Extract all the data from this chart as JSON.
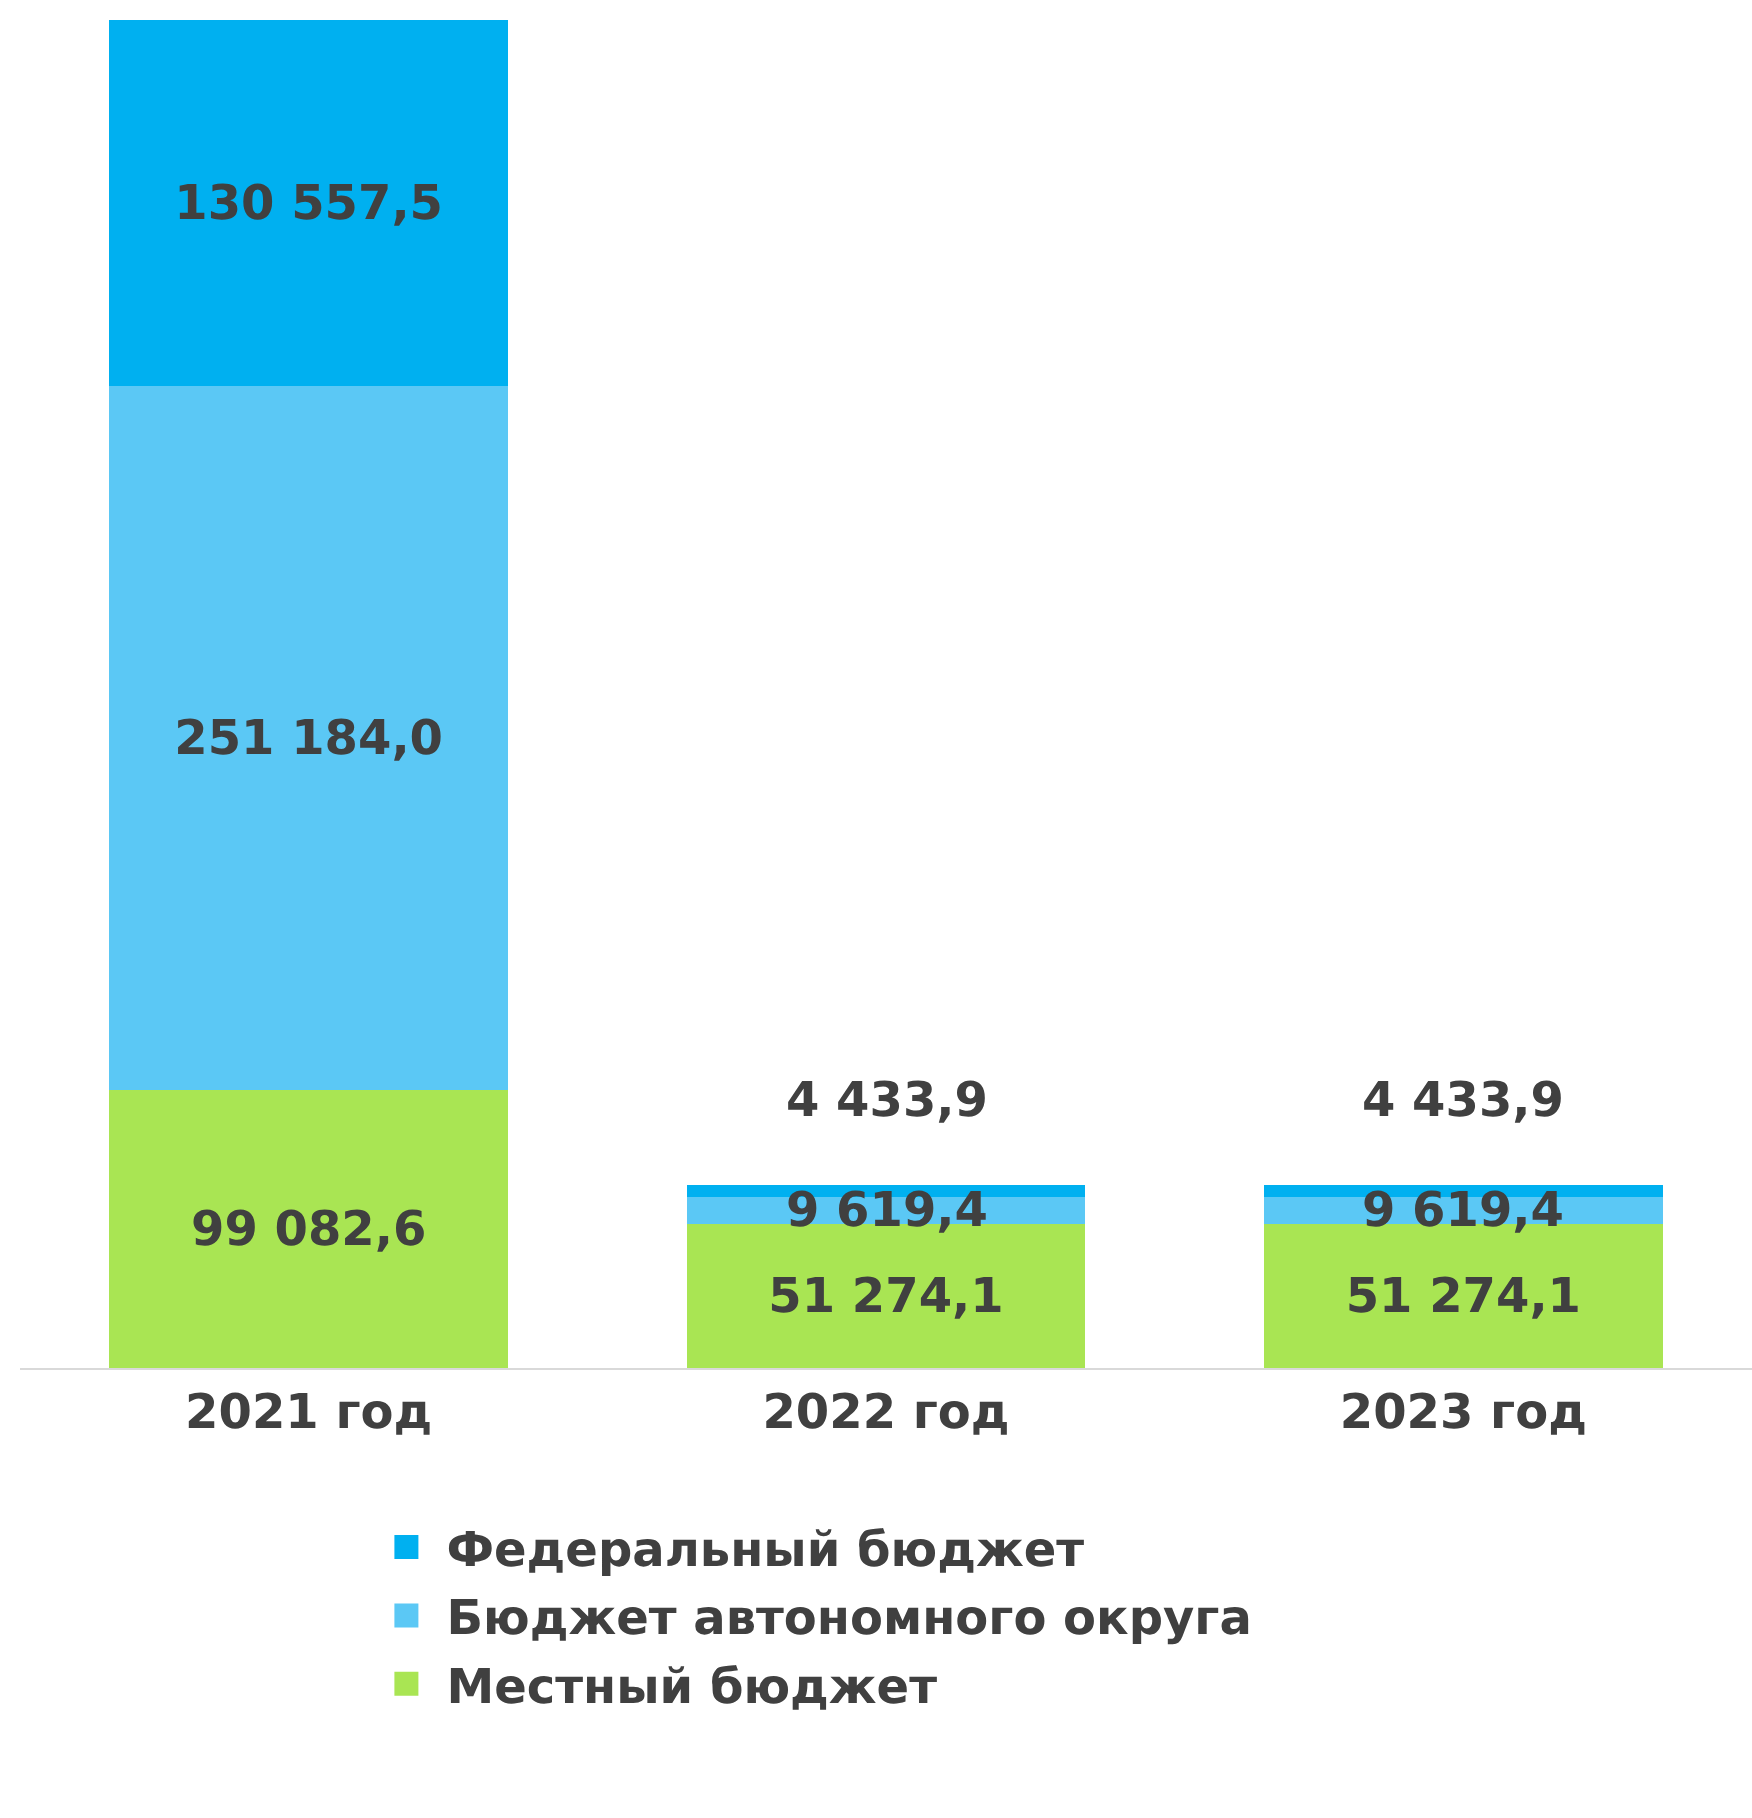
{
  "chart_data": {
    "type": "bar",
    "stacked": true,
    "categories": [
      "2021 год",
      "2022 год",
      "2023 год"
    ],
    "series": [
      {
        "name": "Местный бюджет",
        "color": "#a9e553",
        "values": [
          99082.6,
          51274.1,
          51274.1
        ],
        "value_labels": [
          "99 082,6",
          "51 274,1",
          "51 274,1"
        ]
      },
      {
        "name": "Бюджет автономного округа",
        "color": "#5bc8f5",
        "values": [
          251184.0,
          9619.4,
          9619.4
        ],
        "value_labels": [
          "251 184,0",
          "9 619,4",
          "9 619,4"
        ]
      },
      {
        "name": "Федеральный бюджет",
        "color": "#00b0f0",
        "values": [
          130557.5,
          4433.9,
          4433.9
        ],
        "value_labels": [
          "130 557,5",
          "4 433,9",
          "4 433,9"
        ]
      }
    ],
    "legend": "bottom",
    "tick_labels": "x"
  }
}
